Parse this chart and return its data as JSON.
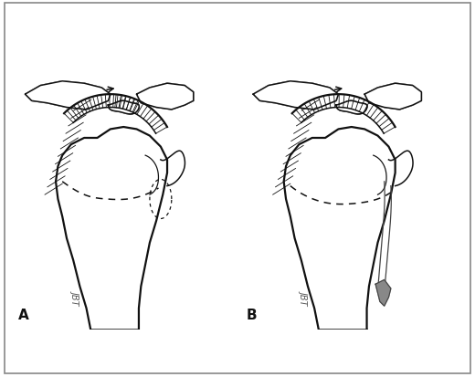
{
  "bg_color": "#ffffff",
  "line_color": "#111111",
  "lw": 1.1,
  "lw_thick": 1.6,
  "lw_thin": 0.6,
  "label_A": "A",
  "label_B": "B",
  "watermark": "JBT"
}
